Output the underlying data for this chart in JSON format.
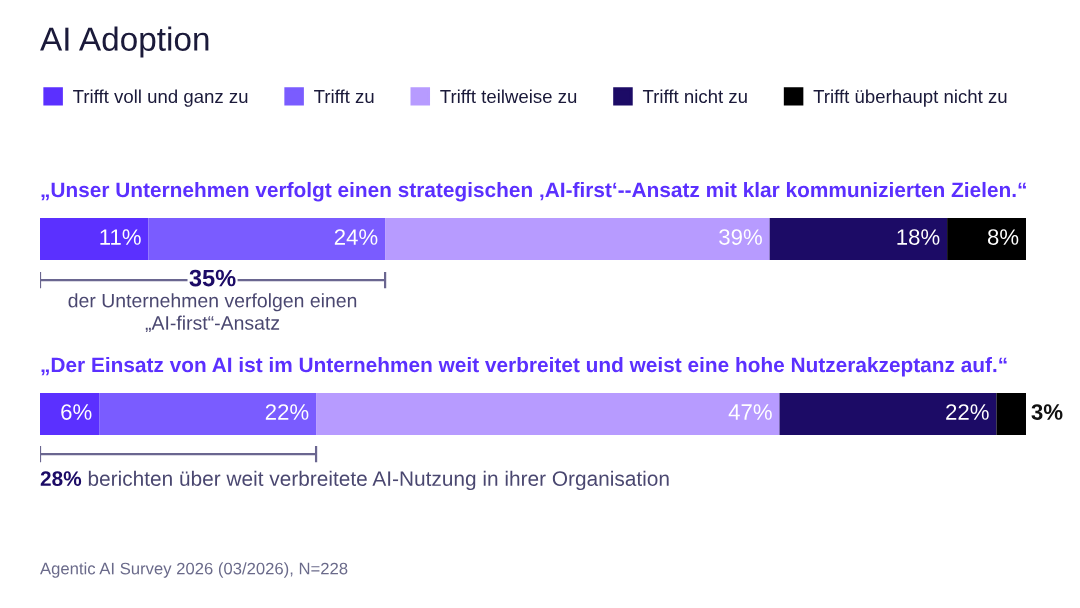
{
  "chart_data": {
    "type": "bar",
    "orientation": "horizontal",
    "stacked": true,
    "title": "AI Adoption",
    "categories": [
      "„Unser Unternehmen verfolgt einen strategischen ‚AI-first‘--Ansatz mit klar kommunizierten Zielen.“",
      "„Der Einsatz von AI ist im Unternehmen weit verbreitet und weist eine hohe Nutzerakzeptanz auf.“"
    ],
    "series": [
      {
        "name": "Trifft voll und ganz zu",
        "color": "#5b30ff",
        "values": [
          11,
          6
        ],
        "value_labels": [
          "11%",
          "6%"
        ]
      },
      {
        "name": "Trifft zu",
        "color": "#7a5cff",
        "values": [
          24,
          22
        ],
        "value_labels": [
          "24%",
          "22%"
        ]
      },
      {
        "name": "Trifft teilweise zu",
        "color": "#b79bff",
        "values": [
          39,
          47
        ],
        "value_labels": [
          "39%",
          "47%"
        ]
      },
      {
        "name": "Trifft nicht zu",
        "color": "#1c0b66",
        "values": [
          18,
          22
        ],
        "value_labels": [
          "18%",
          "22%"
        ]
      },
      {
        "name": "Trifft überhaupt nicht zu",
        "color": "#000000",
        "values": [
          8,
          3
        ],
        "value_labels": [
          "8%",
          "3%"
        ]
      }
    ],
    "xlim": [
      0,
      100
    ],
    "legend": "top left",
    "annotations": [
      "35%",
      "der Unternehmen verfolgen einen\n„AI-first“-Ansatz",
      "28%",
      "berichten über weit verbreitete AI-Nutzung in ihrer Organisation",
      "Agentic AI Survey 2026 (03/2026), N=228"
    ]
  }
}
